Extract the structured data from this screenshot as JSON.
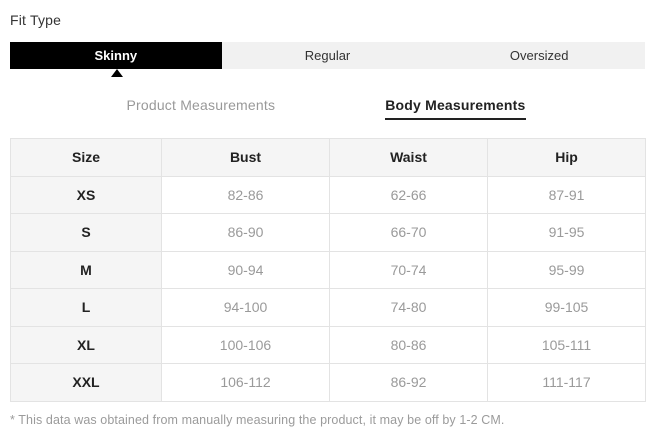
{
  "fit_type": {
    "label": "Fit Type",
    "tabs": [
      {
        "label": "Skinny",
        "active": true
      },
      {
        "label": "Regular",
        "active": false
      },
      {
        "label": "Oversized",
        "active": false
      }
    ]
  },
  "measurement_tabs": [
    {
      "label": "Product Measurements",
      "active": false
    },
    {
      "label": "Body Measurements",
      "active": true
    }
  ],
  "size_table": {
    "headers": [
      "Size",
      "Bust",
      "Waist",
      "Hip"
    ],
    "rows": [
      [
        "XS",
        "82-86",
        "62-66",
        "87-91"
      ],
      [
        "S",
        "86-90",
        "66-70",
        "91-95"
      ],
      [
        "M",
        "90-94",
        "70-74",
        "95-99"
      ],
      [
        "L",
        "94-100",
        "74-80",
        "99-105"
      ],
      [
        "XL",
        "100-106",
        "80-86",
        "105-111"
      ],
      [
        "XXL",
        "106-112",
        "86-92",
        "111-117"
      ]
    ]
  },
  "footnote": "* This data was obtained from manually measuring the product, it may be off by 1-2 CM.",
  "colors": {
    "active_tab_bg": "#000000",
    "active_tab_text": "#ffffff",
    "tab_bar_bg": "#f1f1f1",
    "table_shade_bg": "#f5f5f5",
    "muted_text": "#999999",
    "dark_text": "#222222",
    "border": "#e3e3e3"
  }
}
